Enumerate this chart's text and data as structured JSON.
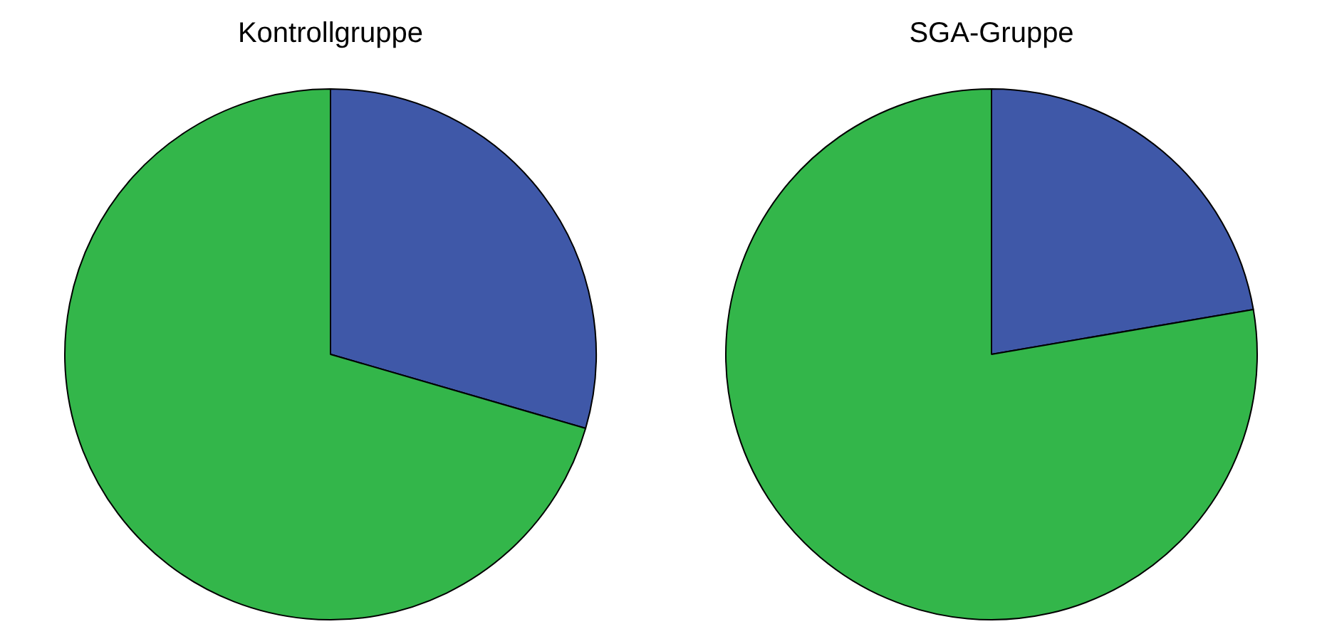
{
  "chart_data": [
    {
      "type": "pie",
      "title": "Kontrollgruppe",
      "categories": [
        null,
        null
      ],
      "values": [
        29.5,
        70.5
      ],
      "colors": [
        "#3f58a8",
        "#33b64a"
      ]
    },
    {
      "type": "pie",
      "title": "SGA-Gruppe",
      "categories": [
        null,
        null
      ],
      "values": [
        22.3,
        77.7
      ],
      "colors": [
        "#3f58a8",
        "#33b64a"
      ]
    }
  ]
}
